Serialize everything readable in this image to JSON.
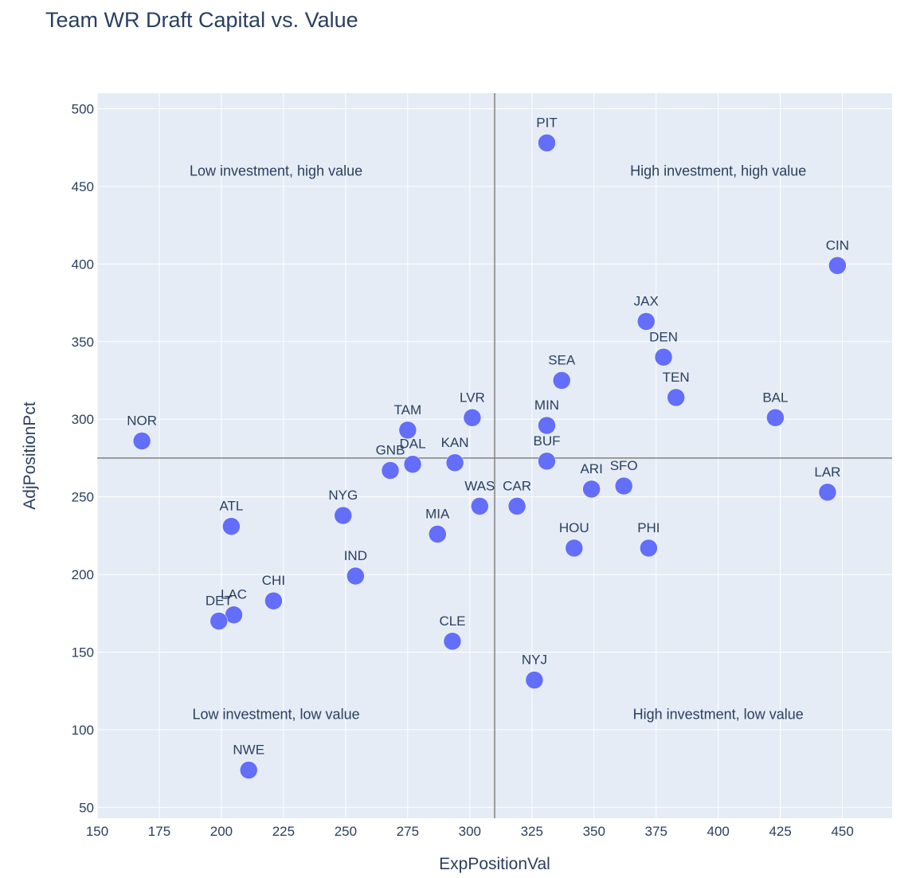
{
  "chart_data": {
    "type": "scatter",
    "title": "Team WR Draft Capital vs. Value",
    "xlabel": "ExpPositionVal",
    "ylabel": "AdjPositionPct",
    "xlim": [
      150,
      470
    ],
    "ylim": [
      43,
      510
    ],
    "xticks": [
      150,
      175,
      200,
      225,
      250,
      275,
      300,
      325,
      350,
      375,
      400,
      425,
      450
    ],
    "yticks": [
      50,
      100,
      150,
      200,
      250,
      300,
      350,
      400,
      450,
      500
    ],
    "grid": true,
    "marker_color": "#636efa",
    "reference_lines": {
      "x": 310,
      "y": 275
    },
    "quadrant_labels": [
      {
        "text": "Low investment, high value",
        "x": 222,
        "y": 457
      },
      {
        "text": "High investment, high value",
        "x": 400,
        "y": 457
      },
      {
        "text": "Low investment, low value",
        "x": 222,
        "y": 107
      },
      {
        "text": "High investment, low value",
        "x": 400,
        "y": 107
      }
    ],
    "points": [
      {
        "label": "PIT",
        "x": 331,
        "y": 478
      },
      {
        "label": "CIN",
        "x": 448,
        "y": 399
      },
      {
        "label": "JAX",
        "x": 371,
        "y": 363
      },
      {
        "label": "DEN",
        "x": 378,
        "y": 340
      },
      {
        "label": "SEA",
        "x": 337,
        "y": 325
      },
      {
        "label": "TEN",
        "x": 383,
        "y": 314
      },
      {
        "label": "BAL",
        "x": 423,
        "y": 301
      },
      {
        "label": "LVR",
        "x": 301,
        "y": 301
      },
      {
        "label": "MIN",
        "x": 331,
        "y": 296
      },
      {
        "label": "TAM",
        "x": 275,
        "y": 293
      },
      {
        "label": "NOR",
        "x": 168,
        "y": 286
      },
      {
        "label": "BUF",
        "x": 331,
        "y": 273
      },
      {
        "label": "KAN",
        "x": 294,
        "y": 272
      },
      {
        "label": "DAL",
        "x": 277,
        "y": 271
      },
      {
        "label": "GNB",
        "x": 268,
        "y": 267
      },
      {
        "label": "SFO",
        "x": 362,
        "y": 257
      },
      {
        "label": "ARI",
        "x": 349,
        "y": 255
      },
      {
        "label": "LAR",
        "x": 444,
        "y": 253
      },
      {
        "label": "WAS",
        "x": 304,
        "y": 244
      },
      {
        "label": "CAR",
        "x": 319,
        "y": 244
      },
      {
        "label": "NYG",
        "x": 249,
        "y": 238
      },
      {
        "label": "ATL",
        "x": 204,
        "y": 231
      },
      {
        "label": "MIA",
        "x": 287,
        "y": 226
      },
      {
        "label": "HOU",
        "x": 342,
        "y": 217
      },
      {
        "label": "PHI",
        "x": 372,
        "y": 217
      },
      {
        "label": "IND",
        "x": 254,
        "y": 199
      },
      {
        "label": "CHI",
        "x": 221,
        "y": 183
      },
      {
        "label": "LAC",
        "x": 205,
        "y": 174
      },
      {
        "label": "DET",
        "x": 199,
        "y": 170
      },
      {
        "label": "CLE",
        "x": 293,
        "y": 157
      },
      {
        "label": "NYJ",
        "x": 326,
        "y": 132
      },
      {
        "label": "NWE",
        "x": 211,
        "y": 74
      }
    ]
  }
}
